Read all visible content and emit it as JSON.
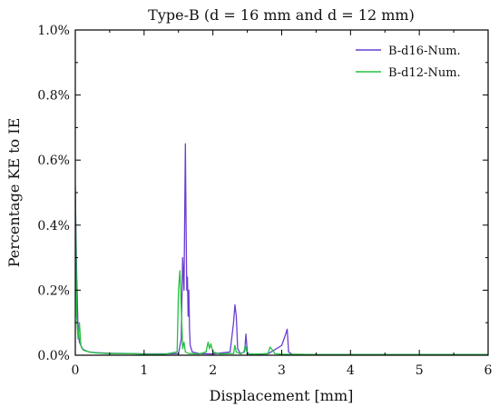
{
  "chart_data": {
    "type": "line",
    "title": "Type-B (d = 16 mm and d = 12 mm)",
    "xlabel": "Displacement [mm]",
    "ylabel": "Percentage KE to IE",
    "xlim": [
      0,
      6
    ],
    "ylim": [
      0,
      1.0
    ],
    "x_ticks": [
      0,
      1,
      2,
      3,
      4,
      5,
      6
    ],
    "x_tick_labels": [
      "0",
      "1",
      "2",
      "3",
      "4",
      "5",
      "6"
    ],
    "y_ticks": [
      0,
      0.2,
      0.4,
      0.6,
      0.8,
      1.0
    ],
    "y_tick_labels": [
      "0.0%",
      "0.2%",
      "0.4%",
      "0.6%",
      "0.8%",
      "1.0%"
    ],
    "grid": false,
    "legend_position": "top-right",
    "series": [
      {
        "name": "B-d16-Num.",
        "color": "#6a3fd0",
        "x": [
          0,
          0.02,
          0.04,
          0.06,
          0.08,
          0.1,
          0.14,
          0.2,
          0.3,
          0.5,
          0.8,
          1.0,
          1.3,
          1.5,
          1.54,
          1.56,
          1.58,
          1.6,
          1.61,
          1.62,
          1.63,
          1.64,
          1.65,
          1.66,
          1.67,
          1.7,
          1.8,
          2.0,
          2.25,
          2.3,
          2.32,
          2.34,
          2.36,
          2.4,
          2.46,
          2.48,
          2.5,
          2.52,
          2.6,
          2.8,
          3.0,
          3.05,
          3.08,
          3.1,
          3.15,
          3.5,
          4.0,
          5.0,
          6.0
        ],
        "y": [
          0.5,
          0.25,
          0.08,
          0.04,
          0.03,
          0.02,
          0.015,
          0.01,
          0.008,
          0.006,
          0.005,
          0.004,
          0.004,
          0.005,
          0.05,
          0.3,
          0.2,
          0.65,
          0.4,
          0.2,
          0.24,
          0.12,
          0.2,
          0.08,
          0.03,
          0.01,
          0.005,
          0.004,
          0.01,
          0.1,
          0.155,
          0.12,
          0.02,
          0.005,
          0.01,
          0.065,
          0.01,
          0.004,
          0.003,
          0.004,
          0.03,
          0.06,
          0.08,
          0.01,
          0.003,
          0.002,
          0.002,
          0.002,
          0.002
        ]
      },
      {
        "name": "B-d12-Num.",
        "color": "#22c040",
        "x": [
          0,
          0.02,
          0.04,
          0.06,
          0.08,
          0.12,
          0.2,
          0.3,
          0.5,
          0.8,
          1.0,
          1.3,
          1.48,
          1.5,
          1.52,
          1.54,
          1.56,
          1.58,
          1.6,
          1.65,
          1.8,
          1.9,
          1.93,
          1.95,
          1.97,
          2.0,
          2.1,
          2.3,
          2.32,
          2.34,
          2.4,
          2.45,
          2.47,
          2.5,
          2.6,
          2.8,
          2.83,
          2.87,
          2.9,
          3.0,
          3.5,
          4.0,
          5.0,
          6.0
        ],
        "y": [
          0.52,
          0.12,
          0.05,
          0.1,
          0.03,
          0.015,
          0.01,
          0.007,
          0.005,
          0.005,
          0.003,
          0.003,
          0.01,
          0.2,
          0.26,
          0.15,
          0.02,
          0.04,
          0.01,
          0.005,
          0.004,
          0.01,
          0.04,
          0.02,
          0.035,
          0.01,
          0.004,
          0.005,
          0.03,
          0.01,
          0.004,
          0.01,
          0.03,
          0.004,
          0.003,
          0.005,
          0.025,
          0.015,
          0.005,
          0.003,
          0.002,
          0.002,
          0.002,
          0.002
        ]
      }
    ]
  }
}
